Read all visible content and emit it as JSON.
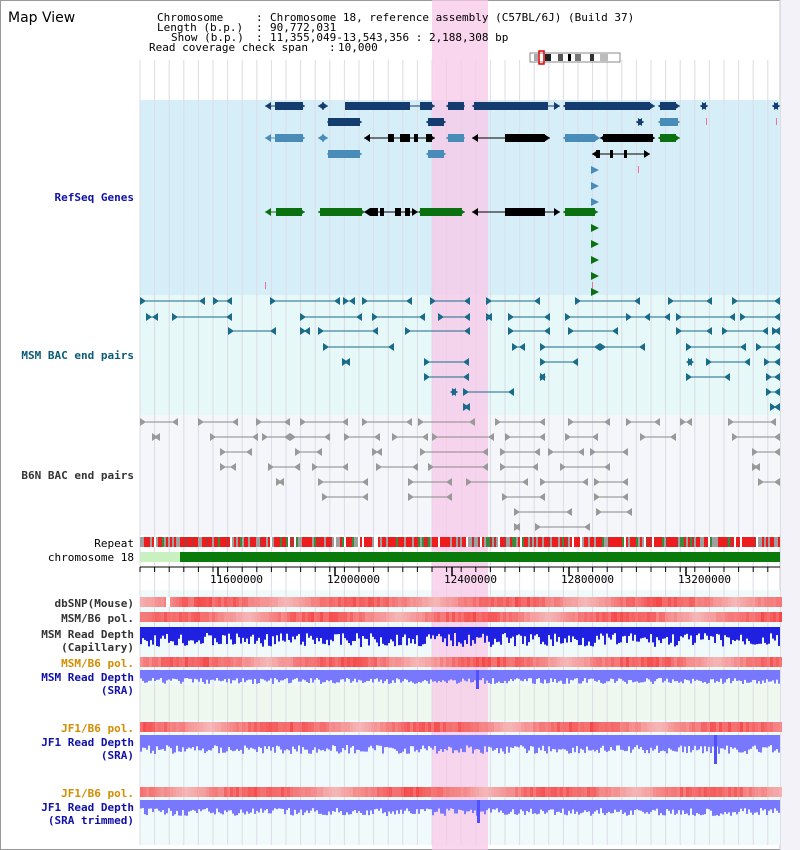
{
  "title": "Map View",
  "header": {
    "chromosome_key": "Chromosome",
    "chromosome_value": "Chromosome 18, reference assembly (C57BL/6J) (Build 37)",
    "length_key": "Length (b.p.)",
    "length_value": "90,772,031",
    "show_key": "Show (b.p.)",
    "show_value": "11,355,049-13,543,356 : 2,188,308 bp",
    "span_key": "Read coverage check span",
    "span_value": "10,000"
  },
  "tracks": {
    "refseq": "RefSeq Genes",
    "msm_bac": "MSM BAC end pairs",
    "b6n_bac": "B6N BAC end pairs",
    "repeat": "Repeat",
    "chromosome": "chromosome 18",
    "dbsnp": "dbSNP(Mouse)",
    "msm_b6_pol_1": "MSM/B6 pol.",
    "msm_depth_cap_1": "MSM Read Depth",
    "msm_depth_cap_2": "(Capillary)",
    "msm_b6_pol_2": "MSM/B6 pol.",
    "msm_depth_sra_1": "MSM Read Depth",
    "msm_depth_sra_2": "(SRA)",
    "jf1_b6_pol_1": "JF1/B6 pol.",
    "jf1_depth_sra_1": "JF1 Read Depth",
    "jf1_depth_sra_2": "(SRA)",
    "jf1_b6_pol_2": "JF1/B6 pol.",
    "jf1_depth_trim_1": "JF1 Read Depth",
    "jf1_depth_trim_2": "(SRA trimmed)"
  },
  "ruler": {
    "ticks": [
      "11600000",
      "12000000",
      "12400000",
      "12800000",
      "13200000"
    ]
  },
  "colors": {
    "refseq_bg": "#d6eef8",
    "bac_bg": "#e6f8f8",
    "highlight": "#f8c8e8",
    "gene_navy": "#143c6e",
    "gene_steel": "#4a8cb8",
    "gene_green": "#0a7010",
    "bac_teal": "#1a6a8a",
    "bac_gray": "#707070",
    "snp_red": "#ee3030",
    "depth_blue": "#2020e0",
    "depth_light": "#7878ff",
    "chrom_green": "#0a7a0a"
  }
}
